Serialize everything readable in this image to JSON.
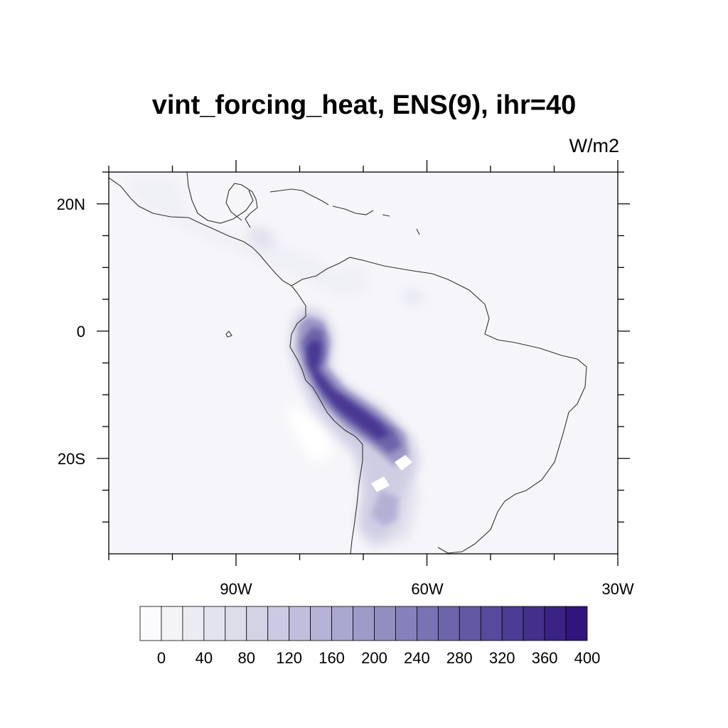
{
  "title": "vint_forcing_heat, ENS(9), ihr=40",
  "units": "W/m2",
  "map": {
    "projection": "cylindrical-equidistant",
    "lon_range": [
      -110,
      -30
    ],
    "lat_range": [
      -35,
      25
    ],
    "x_ticks": [
      {
        "value": -90,
        "label": "90W"
      },
      {
        "value": -60,
        "label": "60W"
      },
      {
        "value": -30,
        "label": "30W"
      }
    ],
    "y_ticks": [
      {
        "value": 20,
        "label": "20N"
      },
      {
        "value": 0,
        "label": "0"
      },
      {
        "value": -20,
        "label": "20S"
      }
    ],
    "field_max_region": "Andes (Ecuador, Peru, Bolivia)",
    "peak_value_approx": 400
  },
  "colorbar": {
    "colors": [
      "#fbfbfd",
      "#f3f3f8",
      "#ebebf3",
      "#e3e3ef",
      "#dcdcea",
      "#d4d3e6",
      "#cbcae2",
      "#c0bedc",
      "#b5b3d6",
      "#aaa8d0",
      "#9e9bc9",
      "#918ec2",
      "#8581bb",
      "#7973b3",
      "#6d65ab",
      "#6258a4",
      "#574a9c",
      "#4c3c94",
      "#42308c",
      "#3a2385",
      "#32147e"
    ],
    "labels": [
      "0",
      "40",
      "80",
      "120",
      "160",
      "200",
      "240",
      "280",
      "320",
      "360",
      "400"
    ]
  }
}
